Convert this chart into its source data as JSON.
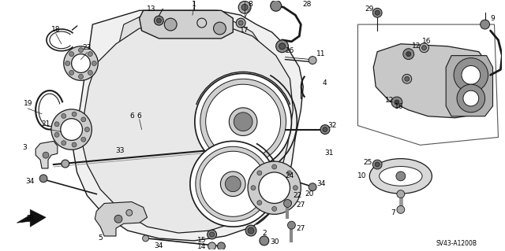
{
  "background_color": "#ffffff",
  "figsize": [
    6.4,
    3.19
  ],
  "dpi": 100,
  "diagram_id_text": "SV43-A1200B",
  "line_color": "#1a1a1a",
  "text_color": "#000000",
  "font_size": 6.0,
  "label_fs": 6.5
}
